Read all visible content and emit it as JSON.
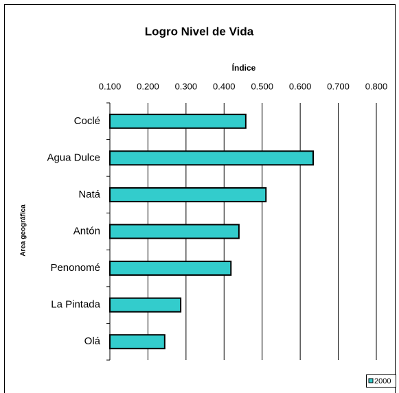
{
  "chart_data": {
    "type": "bar",
    "orientation": "horizontal",
    "title": "Logro Nivel de Vida",
    "x_label": "Índice",
    "y_label": "Area geográfica",
    "categories": [
      "Coclé",
      "Agua Dulce",
      "Natá",
      "Antón",
      "Penonomé",
      "La Pintada",
      "Olá"
    ],
    "series": [
      {
        "name": "2000",
        "color": "#33cccc",
        "values": [
          0.457,
          0.634,
          0.51,
          0.439,
          0.418,
          0.286,
          0.244
        ]
      }
    ],
    "xlim": [
      0.1,
      0.8
    ],
    "xticks": [
      {
        "value": 0.1,
        "label": "0.100"
      },
      {
        "value": 0.2,
        "label": "0.200"
      },
      {
        "value": 0.3,
        "label": "0.300"
      },
      {
        "value": 0.4,
        "label": "0.400"
      },
      {
        "value": 0.5,
        "label": "0.500"
      },
      {
        "value": 0.6,
        "label": "0.600"
      },
      {
        "value": 0.7,
        "label": "0.700"
      },
      {
        "value": 0.8,
        "label": "0.800"
      }
    ],
    "grid": true,
    "legend": "bottom-right"
  }
}
